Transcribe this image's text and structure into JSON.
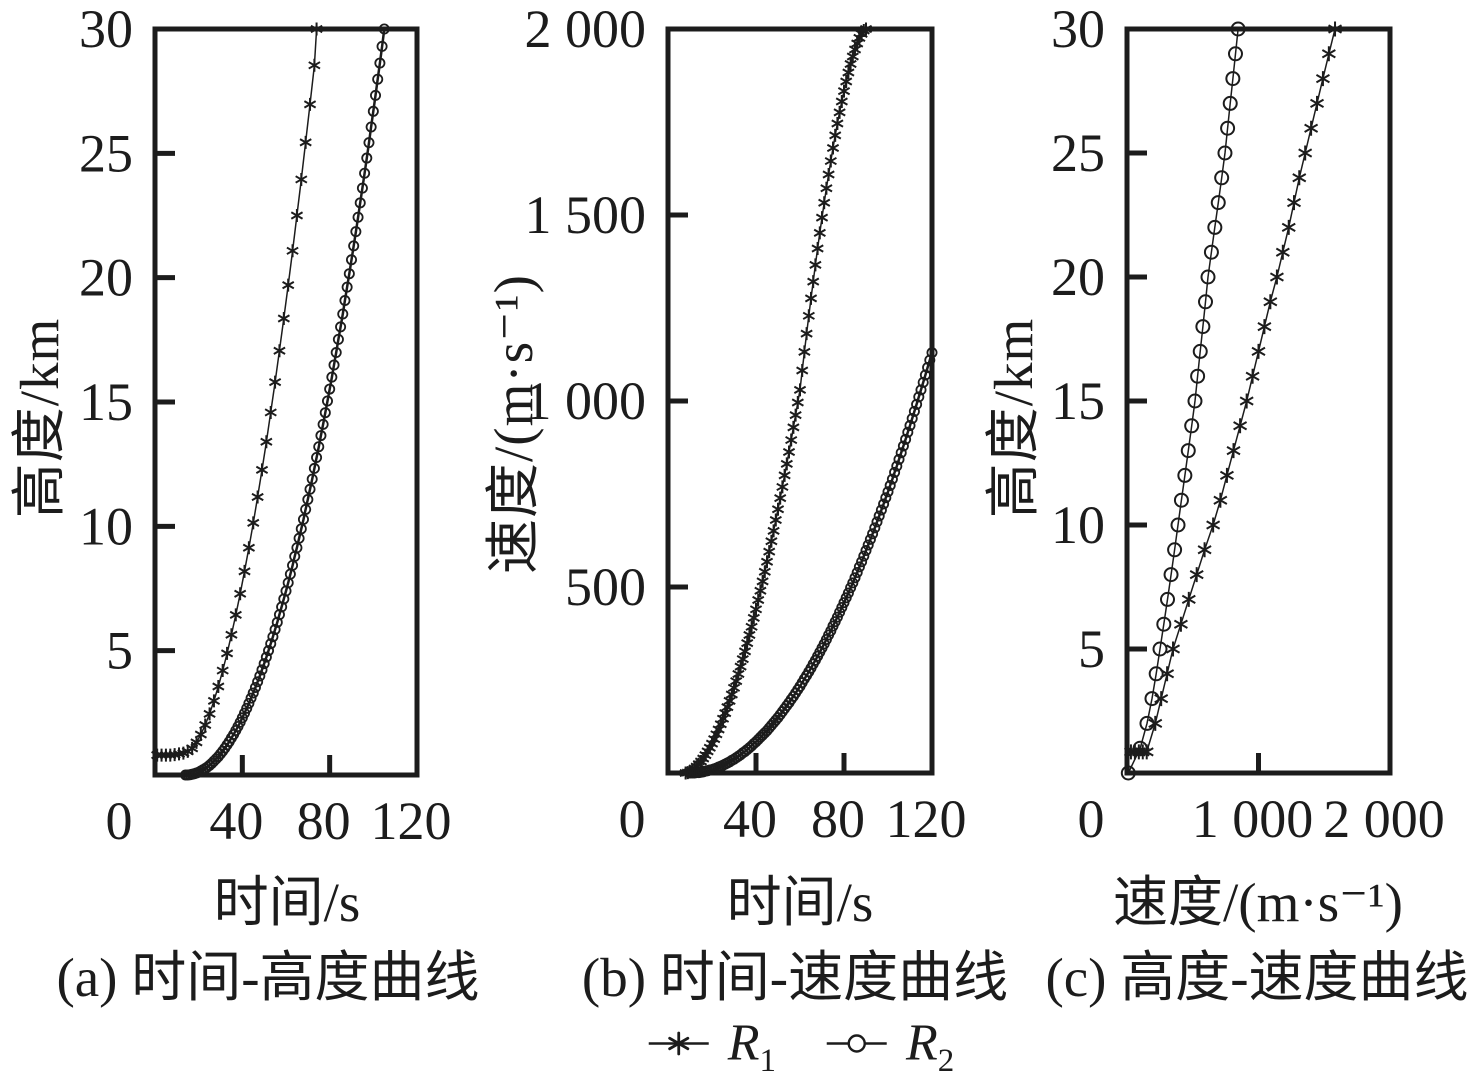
{
  "figure": {
    "background": "#ffffff",
    "ink_color": "#1c1c1c",
    "legend": {
      "items": [
        {
          "id": "R1",
          "label_base": "R",
          "label_sub": "1",
          "marker": "asterisk"
        },
        {
          "id": "R2",
          "label_base": "R",
          "label_sub": "2",
          "marker": "circle"
        }
      ]
    }
  },
  "chart_data": [
    {
      "id": "a",
      "type": "line",
      "caption": "(a) 时间-高度曲线",
      "xlabel": "时间/s",
      "ylabel": "高度/km",
      "xlim": [
        0,
        120
      ],
      "ylim": [
        0,
        30
      ],
      "grid": false,
      "xticks": {
        "values": [
          0,
          40,
          80,
          120
        ],
        "labels": [
          "0",
          "40",
          "80",
          "120"
        ],
        "marked": [
          40,
          80
        ]
      },
      "yticks": {
        "values": [
          5,
          10,
          15,
          20,
          25,
          30
        ],
        "labels": [
          "5",
          "10",
          "15",
          "20",
          "25",
          "30"
        ],
        "marked": [
          5,
          10,
          15,
          20,
          25
        ]
      },
      "series": [
        {
          "name": "R1",
          "marker": "asterisk",
          "points": [
            [
              1,
              0.8
            ],
            [
              3,
              0.8
            ],
            [
              5,
              0.8
            ],
            [
              7,
              0.8
            ],
            [
              9,
              0.82
            ],
            [
              11,
              0.85
            ],
            [
              13,
              0.88
            ],
            [
              15,
              0.95
            ],
            [
              17,
              1.07
            ],
            [
              19,
              1.31
            ],
            [
              21,
              1.63
            ],
            [
              23,
              2.01
            ],
            [
              25,
              2.46
            ],
            [
              27,
              2.98
            ],
            [
              29,
              3.56
            ],
            [
              31,
              4.2
            ],
            [
              33,
              4.89
            ],
            [
              35,
              5.64
            ],
            [
              37,
              6.44
            ],
            [
              39,
              7.29
            ],
            [
              41,
              8.19
            ],
            [
              43,
              9.14
            ],
            [
              45,
              10.14
            ],
            [
              47,
              11.18
            ],
            [
              49,
              12.27
            ],
            [
              51,
              13.4
            ],
            [
              53,
              14.58
            ],
            [
              55,
              15.8
            ],
            [
              57,
              17.06
            ],
            [
              59,
              18.36
            ],
            [
              61,
              19.7
            ],
            [
              63,
              21.08
            ],
            [
              65,
              22.5
            ],
            [
              67,
              23.95
            ],
            [
              69,
              25.44
            ],
            [
              71,
              26.97
            ],
            [
              73,
              28.54
            ],
            [
              74,
              30
            ]
          ]
        },
        {
          "name": "R2",
          "marker": "circle",
          "x_start": 14,
          "x_step": 1,
          "y": [
            0,
            0,
            0.01,
            0.03,
            0.05,
            0.08,
            0.11,
            0.16,
            0.21,
            0.26,
            0.32,
            0.39,
            0.47,
            0.56,
            0.65,
            0.74,
            0.85,
            0.96,
            1.08,
            1.21,
            1.34,
            1.49,
            1.63,
            1.79,
            1.95,
            2.12,
            2.3,
            2.49,
            2.68,
            2.88,
            3.09,
            3.3,
            3.52,
            3.75,
            3.98,
            4.23,
            4.48,
            4.74,
            5.0,
            5.28,
            5.56,
            5.85,
            6.14,
            6.45,
            6.76,
            7.08,
            7.4,
            7.73,
            8.08,
            8.43,
            8.79,
            9.14,
            9.52,
            9.9,
            10.28,
            10.68,
            11.08,
            11.49,
            11.9,
            12.33,
            12.77,
            13.2,
            13.65,
            14.1,
            14.57,
            15.04,
            15.52,
            16.0,
            16.49,
            16.99,
            17.52,
            18.02,
            18.54,
            19.08,
            19.62,
            20.16,
            20.72,
            21.28,
            21.85,
            22.43,
            23.01,
            23.6,
            24.2,
            24.81,
            25.43,
            26.06,
            26.69,
            27.33,
            27.98,
            28.63,
            29.3,
            30.0
          ]
        }
      ]
    },
    {
      "id": "b",
      "type": "line",
      "caption": "(b) 时间-速度曲线",
      "xlabel": "时间/s",
      "ylabel": "速度/(m·s⁻¹)",
      "xlim": [
        0,
        120
      ],
      "ylim": [
        0,
        2000
      ],
      "grid": false,
      "xticks": {
        "values": [
          0,
          40,
          80,
          120
        ],
        "labels": [
          "0",
          "40",
          "80",
          "120"
        ],
        "marked": [
          40,
          80
        ]
      },
      "yticks": {
        "values": [
          500,
          1000,
          1500,
          2000
        ],
        "labels": [
          "500",
          "1 000",
          "1 500",
          "2 000"
        ],
        "marked": [
          500,
          1000,
          1500
        ]
      },
      "series": [
        {
          "name": "R1",
          "marker": "asterisk",
          "x_start": 8,
          "x_step": 1,
          "y": [
            0,
            1,
            3,
            7,
            12,
            17,
            24,
            31,
            39,
            48,
            58,
            68,
            79,
            91,
            104,
            117,
            131,
            146,
            161,
            177,
            194,
            211,
            229,
            247,
            266,
            286,
            306,
            327,
            349,
            371,
            393,
            417,
            440,
            465,
            490,
            515,
            541,
            568,
            595,
            623,
            651,
            680,
            709,
            739,
            769,
            800,
            831,
            863,
            895,
            929,
            962,
            996,
            1030,
            1082,
            1132,
            1181,
            1229,
            1276,
            1321,
            1366,
            1410,
            1452,
            1493,
            1533,
            1572,
            1609,
            1645,
            1680,
            1714,
            1746,
            1776,
            1805,
            1833,
            1859,
            1883,
            1906,
            1926,
            1945,
            1961,
            1976,
            1987,
            1996,
            2000
          ]
        },
        {
          "name": "R2",
          "marker": "circle",
          "x_start": 10,
          "x_step": 1,
          "y": [
            0,
            0,
            0,
            1,
            1,
            2,
            3,
            5,
            6,
            8,
            9,
            11,
            13,
            16,
            18,
            21,
            24,
            27,
            30,
            34,
            37,
            41,
            45,
            49,
            54,
            58,
            63,
            68,
            73,
            79,
            84,
            90,
            96,
            102,
            108,
            114,
            121,
            128,
            135,
            142,
            149,
            157,
            165,
            173,
            181,
            189,
            198,
            206,
            215,
            224,
            233,
            243,
            253,
            262,
            272,
            282,
            293,
            303,
            314,
            325,
            336,
            347,
            359,
            371,
            382,
            395,
            407,
            419,
            432,
            445,
            458,
            471,
            484,
            498,
            511,
            525,
            539,
            554,
            568,
            583,
            598,
            613,
            628,
            643,
            659,
            675,
            691,
            707,
            723,
            740,
            756,
            773,
            790,
            808,
            825,
            843,
            861,
            879,
            897,
            916,
            934,
            953,
            972,
            991,
            1011,
            1030,
            1050,
            1070,
            1090,
            1110,
            1130
          ]
        }
      ]
    },
    {
      "id": "c",
      "type": "line",
      "caption": "(c) 高度-速度曲线",
      "xlabel": "速度/(m·s⁻¹)",
      "ylabel": "高度/km",
      "xlim": [
        0,
        2000
      ],
      "ylim": [
        0,
        30
      ],
      "grid": false,
      "xticks": {
        "values": [
          0,
          1000,
          2000
        ],
        "labels": [
          "0",
          "1 000",
          "2 000"
        ],
        "marked": [
          1000
        ]
      },
      "yticks": {
        "values": [
          5,
          10,
          15,
          20,
          25,
          30
        ],
        "labels": [
          "5",
          "10",
          "15",
          "20",
          "25",
          "30"
        ],
        "marked": [
          5,
          10,
          15,
          20,
          25
        ]
      },
      "series": [
        {
          "name": "R1",
          "marker": "asterisk",
          "points": [
            [
              30,
              0.85
            ],
            [
              60,
              0.85
            ],
            [
              90,
              0.85
            ],
            [
              120,
              0.85
            ],
            [
              150,
              0.85
            ],
            [
              215,
              2
            ],
            [
              260,
              3
            ],
            [
              305,
              4
            ],
            [
              350,
              5
            ],
            [
              410,
              6
            ],
            [
              470,
              7
            ],
            [
              530,
              8
            ],
            [
              590,
              9
            ],
            [
              655,
              10
            ],
            [
              710,
              11
            ],
            [
              760,
              12
            ],
            [
              810,
              13
            ],
            [
              860,
              14
            ],
            [
              910,
              15
            ],
            [
              955,
              16
            ],
            [
              1000,
              17
            ],
            [
              1045,
              18
            ],
            [
              1090,
              19
            ],
            [
              1140,
              20
            ],
            [
              1185,
              21
            ],
            [
              1230,
              22
            ],
            [
              1270,
              23
            ],
            [
              1310,
              24
            ],
            [
              1355,
              25
            ],
            [
              1400,
              26
            ],
            [
              1445,
              27
            ],
            [
              1490,
              28
            ],
            [
              1535,
              29
            ],
            [
              1582,
              30
            ]
          ]
        },
        {
          "name": "R2",
          "marker": "circle",
          "points": [
            [
              10,
              0
            ],
            [
              100,
              1
            ],
            [
              152,
              2
            ],
            [
              190,
              3
            ],
            [
              222,
              4
            ],
            [
              251,
              5
            ],
            [
              280,
              6
            ],
            [
              308,
              7
            ],
            [
              335,
              8
            ],
            [
              362,
              9
            ],
            [
              388,
              10
            ],
            [
              414,
              11
            ],
            [
              440,
              12
            ],
            [
              466,
              13
            ],
            [
              492,
              14
            ],
            [
              517,
              15
            ],
            [
              537,
              16
            ],
            [
              557,
              17
            ],
            [
              577,
              18
            ],
            [
              597,
              19
            ],
            [
              616,
              20
            ],
            [
              642,
              21
            ],
            [
              668,
              22
            ],
            [
              694,
              23
            ],
            [
              720,
              24
            ],
            [
              745,
              25
            ],
            [
              765,
              26
            ],
            [
              785,
              27
            ],
            [
              805,
              28
            ],
            [
              825,
              29
            ],
            [
              845,
              30
            ]
          ]
        }
      ]
    }
  ]
}
